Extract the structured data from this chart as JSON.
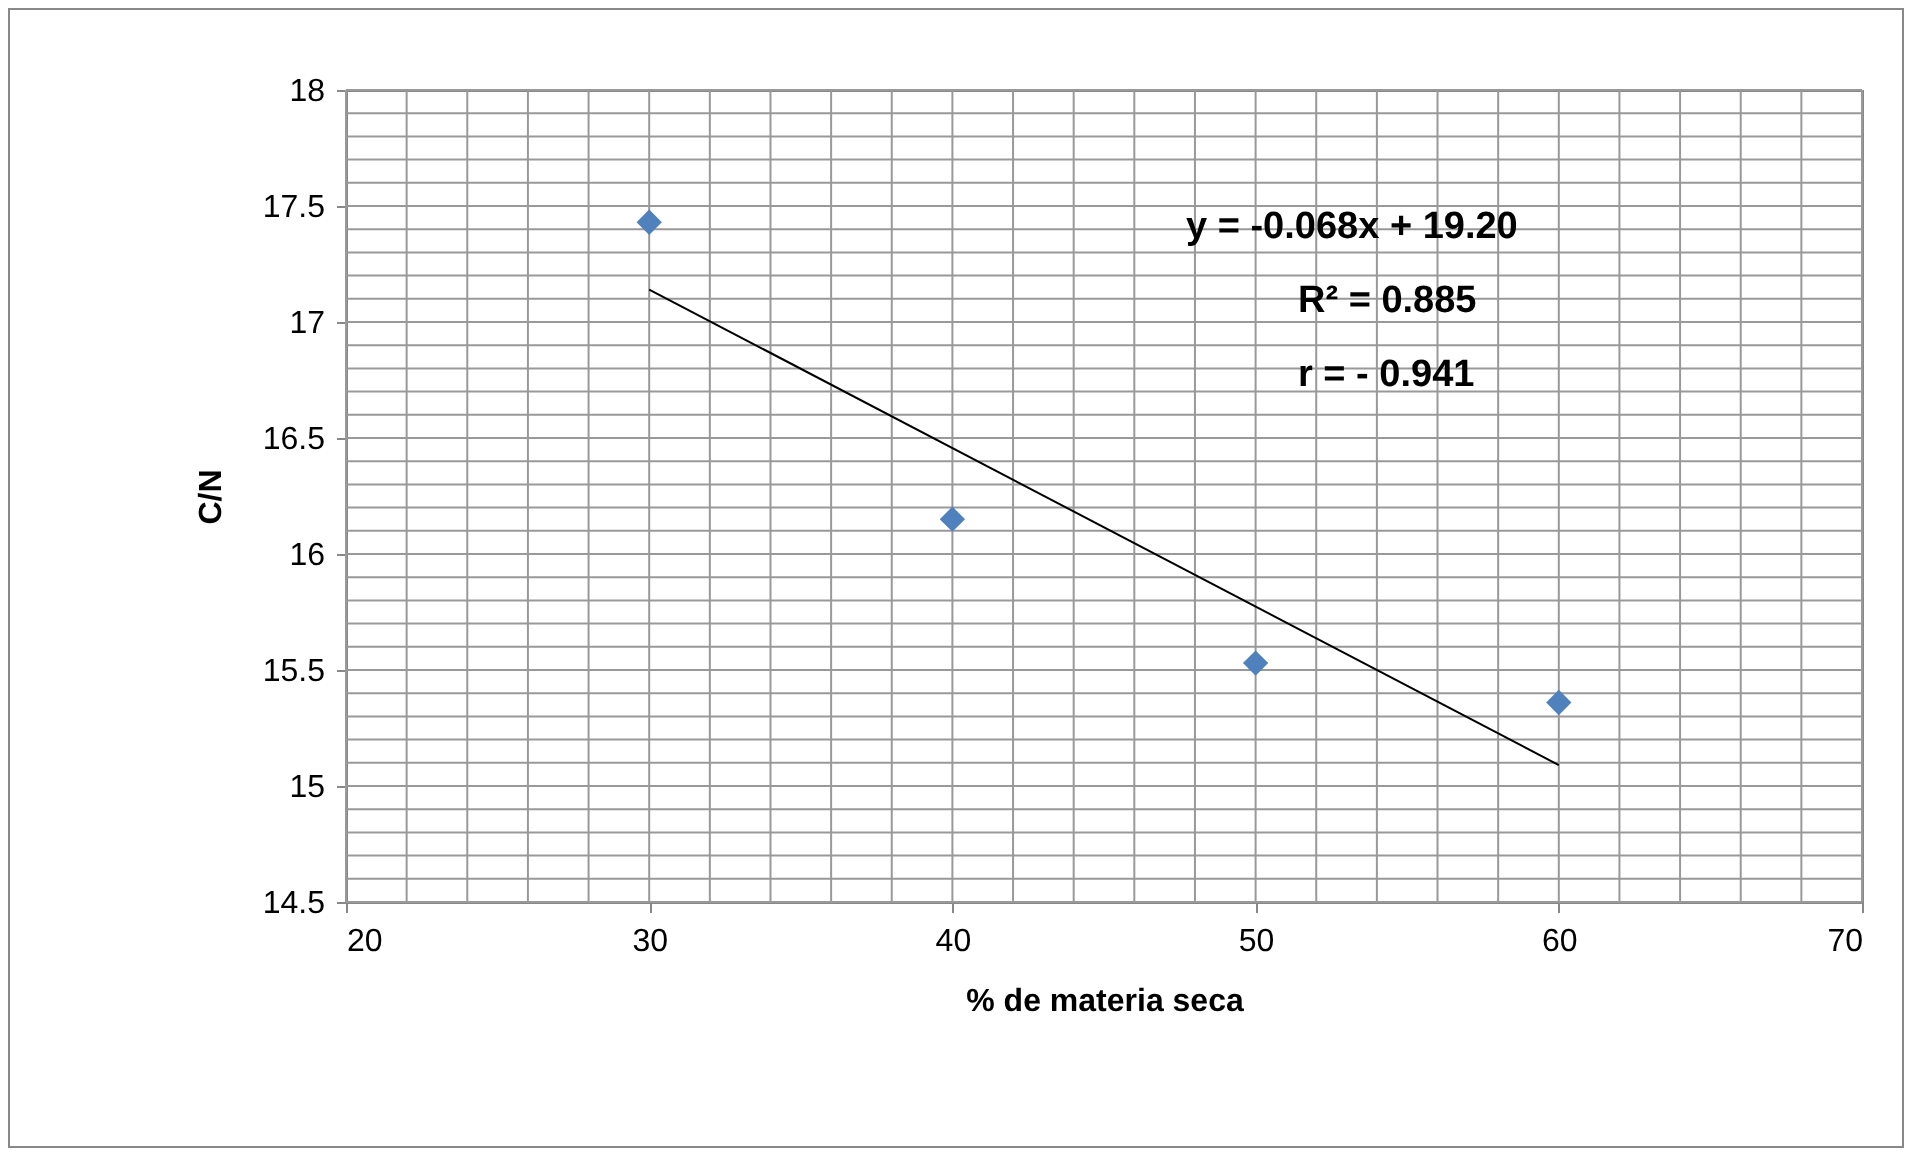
{
  "chart_data": {
    "type": "scatter",
    "xlabel": "% de materia seca",
    "ylabel": "C/N",
    "x": [
      30,
      40,
      50,
      60
    ],
    "series": [
      {
        "type": "scatter",
        "color": "#4f81bd",
        "marker": "diamond",
        "values": [
          17.43,
          16.15,
          15.53,
          15.36
        ]
      },
      {
        "type": "line",
        "color": "#000000",
        "x": [
          30,
          60
        ],
        "values": [
          17.14,
          15.09
        ],
        "marker": "none"
      }
    ],
    "xlim": [
      20,
      70
    ],
    "xticks": [
      20,
      {
        "value": 22,
        "label": null
      },
      {
        "value": 24,
        "label": null
      },
      {
        "value": 26,
        "label": null
      },
      {
        "value": 28,
        "label": null
      },
      30,
      {
        "value": 32,
        "label": null
      },
      {
        "value": 34,
        "label": null
      },
      {
        "value": 36,
        "label": null
      },
      {
        "value": 38,
        "label": null
      },
      40,
      {
        "value": 42,
        "label": null
      },
      {
        "value": 44,
        "label": null
      },
      {
        "value": 46,
        "label": null
      },
      {
        "value": 48,
        "label": null
      },
      50,
      {
        "value": 52,
        "label": null
      },
      {
        "value": 54,
        "label": null
      },
      {
        "value": 56,
        "label": null
      },
      {
        "value": 58,
        "label": null
      },
      60,
      {
        "value": 62,
        "label": null
      },
      {
        "value": 64,
        "label": null
      },
      {
        "value": 66,
        "label": null
      },
      {
        "value": 68,
        "label": null
      },
      70
    ],
    "ylim": [
      14.5,
      18
    ],
    "yticks": [
      14.5,
      {
        "value": 14.6,
        "label": null
      },
      {
        "value": 14.7,
        "label": null
      },
      {
        "value": 14.8,
        "label": null
      },
      {
        "value": 14.9,
        "label": null
      },
      15,
      {
        "value": 15.1,
        "label": null
      },
      {
        "value": 15.2,
        "label": null
      },
      {
        "value": 15.3,
        "label": null
      },
      {
        "value": 15.4,
        "label": null
      },
      15.5,
      {
        "value": 15.6,
        "label": null
      },
      {
        "value": 15.7,
        "label": null
      },
      {
        "value": 15.8,
        "label": null
      },
      {
        "value": 15.9,
        "label": null
      },
      16,
      {
        "value": 16.1,
        "label": null
      },
      {
        "value": 16.2,
        "label": null
      },
      {
        "value": 16.3,
        "label": null
      },
      {
        "value": 16.4,
        "label": null
      },
      16.5,
      {
        "value": 16.6,
        "label": null
      },
      {
        "value": 16.7,
        "label": null
      },
      {
        "value": 16.8,
        "label": null
      },
      {
        "value": 16.9,
        "label": null
      },
      17,
      {
        "value": 17.1,
        "label": null
      },
      {
        "value": 17.2,
        "label": null
      },
      {
        "value": 17.3,
        "label": null
      },
      {
        "value": 17.4,
        "label": null
      },
      17.5,
      {
        "value": 17.6,
        "label": null
      },
      {
        "value": 17.7,
        "label": null
      },
      {
        "value": 17.8,
        "label": null
      },
      {
        "value": 17.9,
        "label": null
      },
      18
    ],
    "grid": true,
    "annotations": [
      "y = -0.068x + 19.20",
      "R² = 0.885",
      "r = - 0.941"
    ]
  }
}
